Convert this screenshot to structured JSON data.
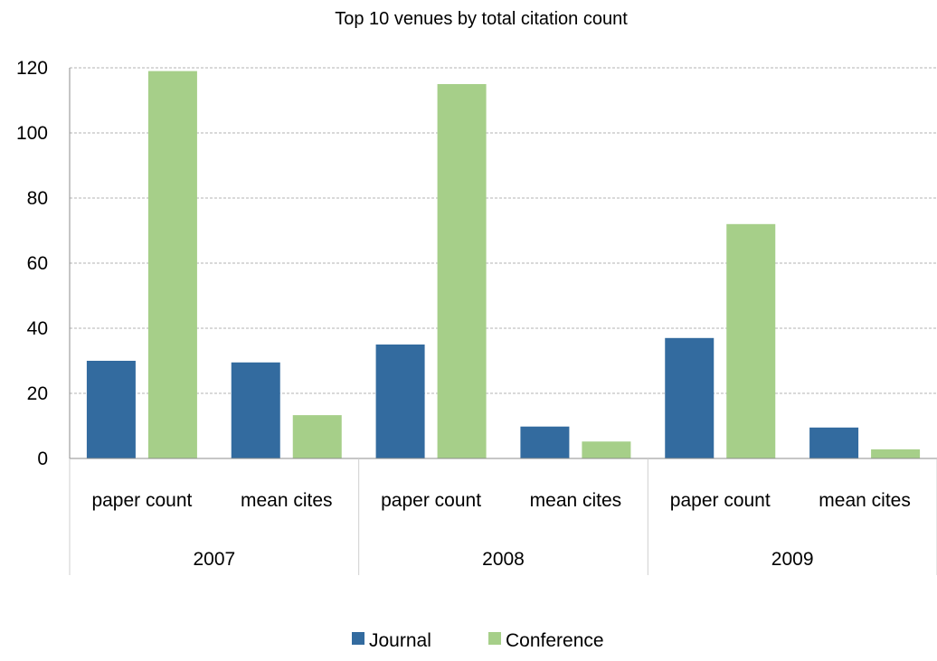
{
  "chart_data": {
    "type": "bar",
    "title": "Top 10 venues by total citation count",
    "xlabel": "",
    "ylabel": "",
    "ylim": [
      0,
      120
    ],
    "yticks": [
      0,
      20,
      40,
      60,
      80,
      100,
      120
    ],
    "grid": true,
    "legend_position": "bottom",
    "groups": [
      "2007",
      "2008",
      "2009"
    ],
    "categories": [
      "paper count",
      "mean cites",
      "paper count",
      "mean cites",
      "paper count",
      "mean cites"
    ],
    "series": [
      {
        "name": "Journal",
        "color": "#336b9f",
        "values": [
          30,
          29.5,
          35,
          9.8,
          37,
          9.5
        ]
      },
      {
        "name": "Conference",
        "color": "#a6cf89",
        "values": [
          119,
          13.3,
          115,
          5.2,
          72,
          2.8
        ]
      }
    ]
  }
}
